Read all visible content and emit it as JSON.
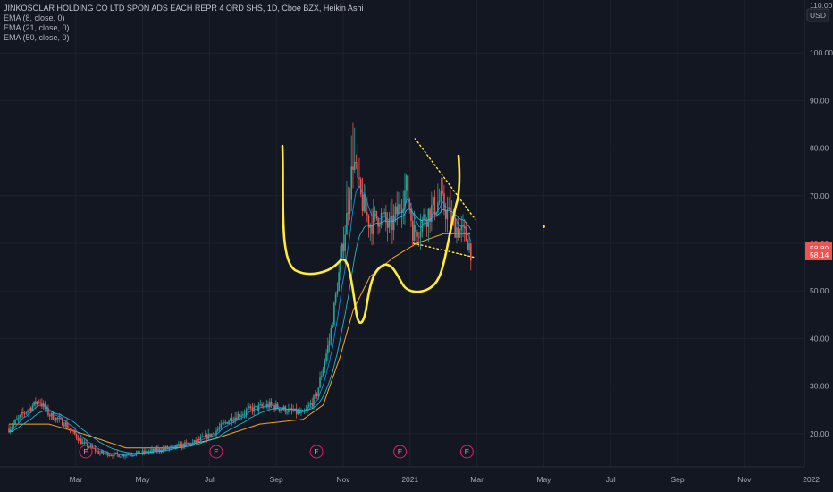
{
  "header": {
    "title": "JINKOSOLAR HOLDING CO LTD SPON ADS EACH REPR 4 ORD SHS, 1D, Cboe BZX, Heikin Ashi",
    "indicators": [
      "EMA (8, close, 0)",
      "EMA (21, close, 0)",
      "EMA (50, close, 0)"
    ]
  },
  "price_scale": {
    "currency": "USD",
    "top_label": "110.00"
  },
  "price_tags": [
    {
      "value": "58.89",
      "color": "#ef5350"
    },
    {
      "value": "58.14",
      "color": "#ef5350"
    }
  ],
  "earnings_marker": "E",
  "colors": {
    "bg": "#131722",
    "up": "#26a69a",
    "down": "#ef5350",
    "ema8": "#2196f3",
    "ema21": "#26c6da",
    "ema50": "#f5a623",
    "drawing": "#ffeb3b",
    "grid": "#1e222d"
  },
  "chart_data": {
    "type": "candlestick",
    "title": "JINKOSOLAR HOLDING CO LTD SPON ADS EACH REPR 4 ORD SHS, 1D, Cboe BZX, Heikin Ashi",
    "ylim": [
      13,
      110
    ],
    "y_ticks": [
      20,
      30,
      40,
      50,
      60,
      70,
      80,
      90,
      100
    ],
    "x_ticks": [
      "Mar",
      "May",
      "Jul",
      "Sep",
      "Nov",
      "2021",
      "Mar",
      "May",
      "Jul",
      "Sep",
      "Nov",
      "2022"
    ],
    "x_tick_months": [
      2,
      4,
      6,
      8,
      10,
      12,
      14,
      16,
      18,
      20,
      22,
      24
    ],
    "last_price": 58.14,
    "previous_close": 58.89,
    "earnings_months": [
      2.3,
      6.2,
      9.2,
      11.7,
      13.7
    ],
    "price_path": [
      [
        0,
        21
      ],
      [
        0.4,
        24
      ],
      [
        0.9,
        27
      ],
      [
        1.2,
        24
      ],
      [
        1.7,
        22
      ],
      [
        2.2,
        18
      ],
      [
        2.7,
        16
      ],
      [
        3.3,
        15.5
      ],
      [
        4.0,
        16
      ],
      [
        4.8,
        17
      ],
      [
        5.5,
        18
      ],
      [
        6.1,
        20
      ],
      [
        6.6,
        23
      ],
      [
        7.2,
        25
      ],
      [
        7.8,
        26
      ],
      [
        8.3,
        25
      ],
      [
        8.8,
        24
      ],
      [
        9.2,
        28
      ],
      [
        9.6,
        40
      ],
      [
        9.9,
        55
      ],
      [
        10.1,
        65
      ],
      [
        10.3,
        78
      ],
      [
        10.5,
        70
      ],
      [
        10.8,
        64
      ],
      [
        11.1,
        66
      ],
      [
        11.4,
        63
      ],
      [
        11.7,
        68
      ],
      [
        11.9,
        72
      ],
      [
        12.1,
        62
      ],
      [
        12.5,
        66
      ],
      [
        12.9,
        69
      ],
      [
        13.3,
        64
      ],
      [
        13.7,
        61
      ],
      [
        13.85,
        58
      ]
    ],
    "ema_50_path": [
      [
        0,
        22
      ],
      [
        1.2,
        22
      ],
      [
        2.2,
        20
      ],
      [
        3.5,
        17
      ],
      [
        5.0,
        17
      ],
      [
        6.2,
        19
      ],
      [
        7.5,
        22
      ],
      [
        8.8,
        23
      ],
      [
        9.4,
        26
      ],
      [
        9.9,
        36
      ],
      [
        10.3,
        46
      ],
      [
        10.8,
        53
      ],
      [
        11.5,
        57
      ],
      [
        12.2,
        60
      ],
      [
        13.0,
        62
      ],
      [
        13.85,
        62
      ]
    ],
    "drawings": {
      "upper_trendline": [
        [
          12.15,
          82
        ],
        [
          13.95,
          65
        ]
      ],
      "lower_trendline": [
        [
          12.1,
          60
        ],
        [
          13.95,
          57
        ]
      ],
      "marker_point": [
        16.0,
        63.5
      ]
    }
  }
}
